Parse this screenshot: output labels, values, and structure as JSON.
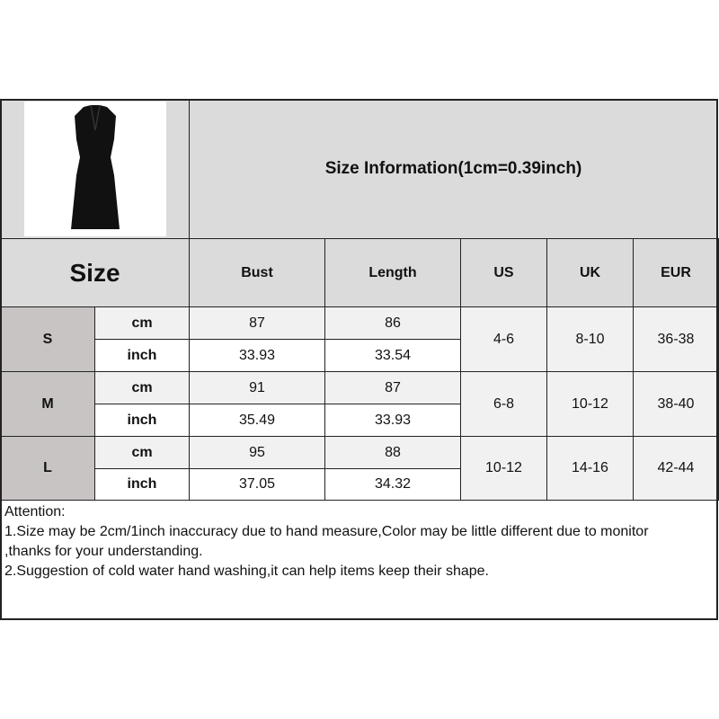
{
  "title": "Size Information(1cm=0.39inch)",
  "size_header": "Size",
  "columns": [
    "Bust",
    "Length",
    "US",
    "UK",
    "EUR"
  ],
  "unit_labels": {
    "cm": "cm",
    "inch": "inch"
  },
  "rows": [
    {
      "size": "S",
      "cm": {
        "bust": "87",
        "length": "86"
      },
      "inch": {
        "bust": "33.93",
        "length": "33.54"
      },
      "us": "4-6",
      "uk": "8-10",
      "eur": "36-38"
    },
    {
      "size": "M",
      "cm": {
        "bust": "91",
        "length": "87"
      },
      "inch": {
        "bust": "35.49",
        "length": "33.93"
      },
      "us": "6-8",
      "uk": "10-12",
      "eur": "38-40"
    },
    {
      "size": "L",
      "cm": {
        "bust": "95",
        "length": "88"
      },
      "inch": {
        "bust": "37.05",
        "length": "34.32"
      },
      "us": "10-12",
      "uk": "14-16",
      "eur": "42-44"
    }
  ],
  "notes": [
    "Attention:",
    "1.Size may be 2cm/1inch inaccuracy due to hand measure,Color may be little different due to monitor",
    ",thanks for your understanding.",
    "2.Suggestion of cold water hand washing,it can help items keep their shape."
  ],
  "colors": {
    "header": "#dcdbdc",
    "size_cell": "#c8c4c4",
    "cm_row": "#f1f1f1",
    "inch_row": "#ffffff"
  }
}
